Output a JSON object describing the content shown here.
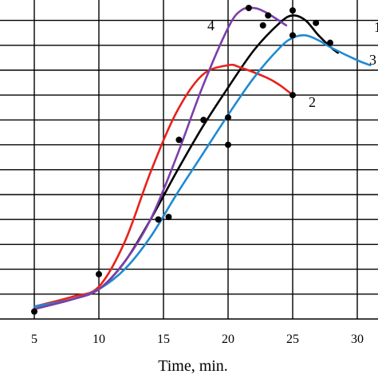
{
  "chart_data": {
    "type": "line",
    "title": "",
    "xlabel": "Time, min.",
    "ylabel": "",
    "xlim": [
      3.2,
      32
    ],
    "ylim": [
      0,
      12.5
    ],
    "xticks": [
      5,
      10,
      15,
      20,
      25,
      30
    ],
    "grid": true,
    "series": [
      {
        "label": "1",
        "color": "#000000",
        "points": [
          [
            5,
            0.4
          ],
          [
            8,
            0.8
          ],
          [
            10,
            1.2
          ],
          [
            12,
            2.3
          ],
          [
            14,
            4.0
          ],
          [
            16,
            5.9
          ],
          [
            18,
            7.7
          ],
          [
            20,
            9.3
          ],
          [
            22,
            10.8
          ],
          [
            24,
            11.9
          ],
          [
            25,
            12.2
          ],
          [
            26,
            12.0
          ],
          [
            27,
            11.4
          ],
          [
            28,
            10.9
          ],
          [
            28.5,
            10.7
          ]
        ]
      },
      {
        "label": "2",
        "color": "#e8211a",
        "points": [
          [
            5,
            0.5
          ],
          [
            8,
            0.9
          ],
          [
            10,
            1.3
          ],
          [
            12,
            3.1
          ],
          [
            14,
            5.9
          ],
          [
            16,
            8.3
          ],
          [
            18,
            9.8
          ],
          [
            20,
            10.2
          ],
          [
            21,
            10.1
          ],
          [
            23,
            9.7
          ],
          [
            24,
            9.4
          ],
          [
            25,
            9.0
          ]
        ]
      },
      {
        "label": "3",
        "color": "#1f8ad2",
        "points": [
          [
            5,
            0.5
          ],
          [
            8,
            0.8
          ],
          [
            10,
            1.2
          ],
          [
            12,
            2.0
          ],
          [
            14,
            3.3
          ],
          [
            16,
            5.0
          ],
          [
            18,
            6.6
          ],
          [
            20,
            8.2
          ],
          [
            22,
            9.7
          ],
          [
            24,
            10.9
          ],
          [
            25,
            11.3
          ],
          [
            26,
            11.4
          ],
          [
            27,
            11.2
          ],
          [
            28,
            10.9
          ],
          [
            30,
            10.4
          ],
          [
            31,
            10.2
          ]
        ]
      },
      {
        "label": "4",
        "color": "#7b3fa8",
        "points": [
          [
            5,
            0.4
          ],
          [
            8,
            0.8
          ],
          [
            10,
            1.2
          ],
          [
            12,
            2.3
          ],
          [
            14,
            4.0
          ],
          [
            16,
            6.5
          ],
          [
            18,
            9.3
          ],
          [
            20,
            11.7
          ],
          [
            21,
            12.4
          ],
          [
            22,
            12.5
          ],
          [
            23,
            12.3
          ],
          [
            24.5,
            11.8
          ]
        ]
      }
    ],
    "markers": [
      [
        5,
        0.3
      ],
      [
        10,
        1.8
      ],
      [
        14.6,
        4.0
      ],
      [
        15.4,
        4.1
      ],
      [
        16.2,
        7.2
      ],
      [
        18.1,
        8.0
      ],
      [
        20,
        8.1
      ],
      [
        20,
        7.0
      ],
      [
        21.6,
        12.5
      ],
      [
        23.1,
        12.2
      ],
      [
        22.7,
        11.8
      ],
      [
        25,
        12.4
      ],
      [
        25,
        11.4
      ],
      [
        26.8,
        11.9
      ],
      [
        27.9,
        11.1
      ],
      [
        25,
        9.0
      ]
    ]
  }
}
